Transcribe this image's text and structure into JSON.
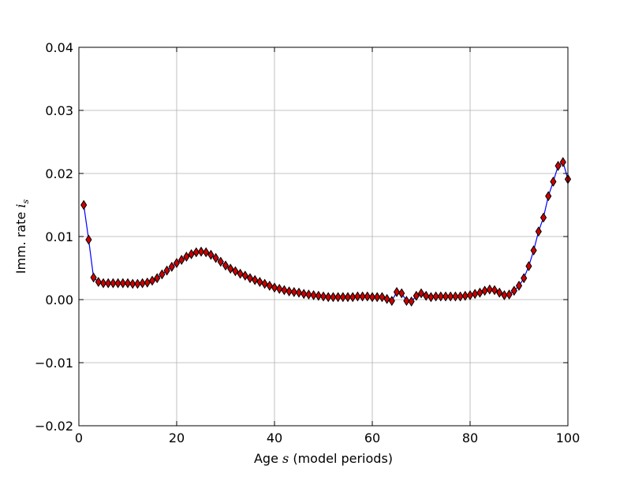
{
  "chart_data": {
    "type": "line",
    "xlabel": "Age s (model periods)",
    "ylabel": "Imm. rate i_s",
    "xlim": [
      0,
      100
    ],
    "ylim": [
      -0.02,
      0.04
    ],
    "xticks": [
      "0",
      "20",
      "40",
      "60",
      "80",
      "100"
    ],
    "yticks": [
      "−0.02",
      "−0.01",
      "0.00",
      "0.01",
      "0.02",
      "0.03",
      "0.04"
    ],
    "grid": true,
    "line_color": "#0000ff",
    "marker": "diamond",
    "marker_color": "#cc0000",
    "series": [
      {
        "x": [
          1,
          2,
          3,
          4,
          5,
          6,
          7,
          8,
          9,
          10,
          11,
          12,
          13,
          14,
          15,
          16,
          17,
          18,
          19,
          20,
          21,
          22,
          23,
          24,
          25,
          26,
          27,
          28,
          29,
          30,
          31,
          32,
          33,
          34,
          35,
          36,
          37,
          38,
          39,
          40,
          41,
          42,
          43,
          44,
          45,
          46,
          47,
          48,
          49,
          50,
          51,
          52,
          53,
          54,
          55,
          56,
          57,
          58,
          59,
          60,
          61,
          62,
          63,
          64,
          65,
          66,
          67,
          68,
          69,
          70,
          71,
          72,
          73,
          74,
          75,
          76,
          77,
          78,
          79,
          80,
          81,
          82,
          83,
          84,
          85,
          86,
          87,
          88,
          89,
          90,
          91,
          92,
          93,
          94,
          95,
          96,
          97,
          98,
          99,
          100
        ],
        "y": [
          0.015,
          0.0095,
          0.0035,
          0.0028,
          0.0026,
          0.0026,
          0.0026,
          0.0026,
          0.0026,
          0.0026,
          0.0025,
          0.0025,
          0.0026,
          0.0027,
          0.003,
          0.0034,
          0.004,
          0.0046,
          0.0052,
          0.0058,
          0.0063,
          0.0068,
          0.0072,
          0.0075,
          0.0076,
          0.0075,
          0.0071,
          0.0066,
          0.006,
          0.0054,
          0.0049,
          0.0045,
          0.0041,
          0.0038,
          0.0034,
          0.0031,
          0.0028,
          0.0025,
          0.0022,
          0.0019,
          0.0017,
          0.0015,
          0.0013,
          0.0012,
          0.0011,
          0.0009,
          0.0008,
          0.0007,
          0.0006,
          0.0005,
          0.0004,
          0.0004,
          0.0004,
          0.0004,
          0.0004,
          0.0004,
          0.0005,
          0.0005,
          0.0005,
          0.0004,
          0.0004,
          0.0004,
          0.0001,
          -0.0002,
          0.0012,
          0.001,
          -0.0002,
          -0.0003,
          0.0006,
          0.001,
          0.0006,
          0.0004,
          0.0005,
          0.0005,
          0.0005,
          0.0005,
          0.0005,
          0.0005,
          0.0006,
          0.0007,
          0.0009,
          0.0011,
          0.0014,
          0.0016,
          0.0015,
          0.0011,
          0.0007,
          0.0008,
          0.0014,
          0.0022,
          0.0034,
          0.0053,
          0.0078,
          0.0108,
          0.013,
          0.0164,
          0.0187,
          0.0212,
          0.0218,
          0.0191
        ]
      }
    ]
  }
}
